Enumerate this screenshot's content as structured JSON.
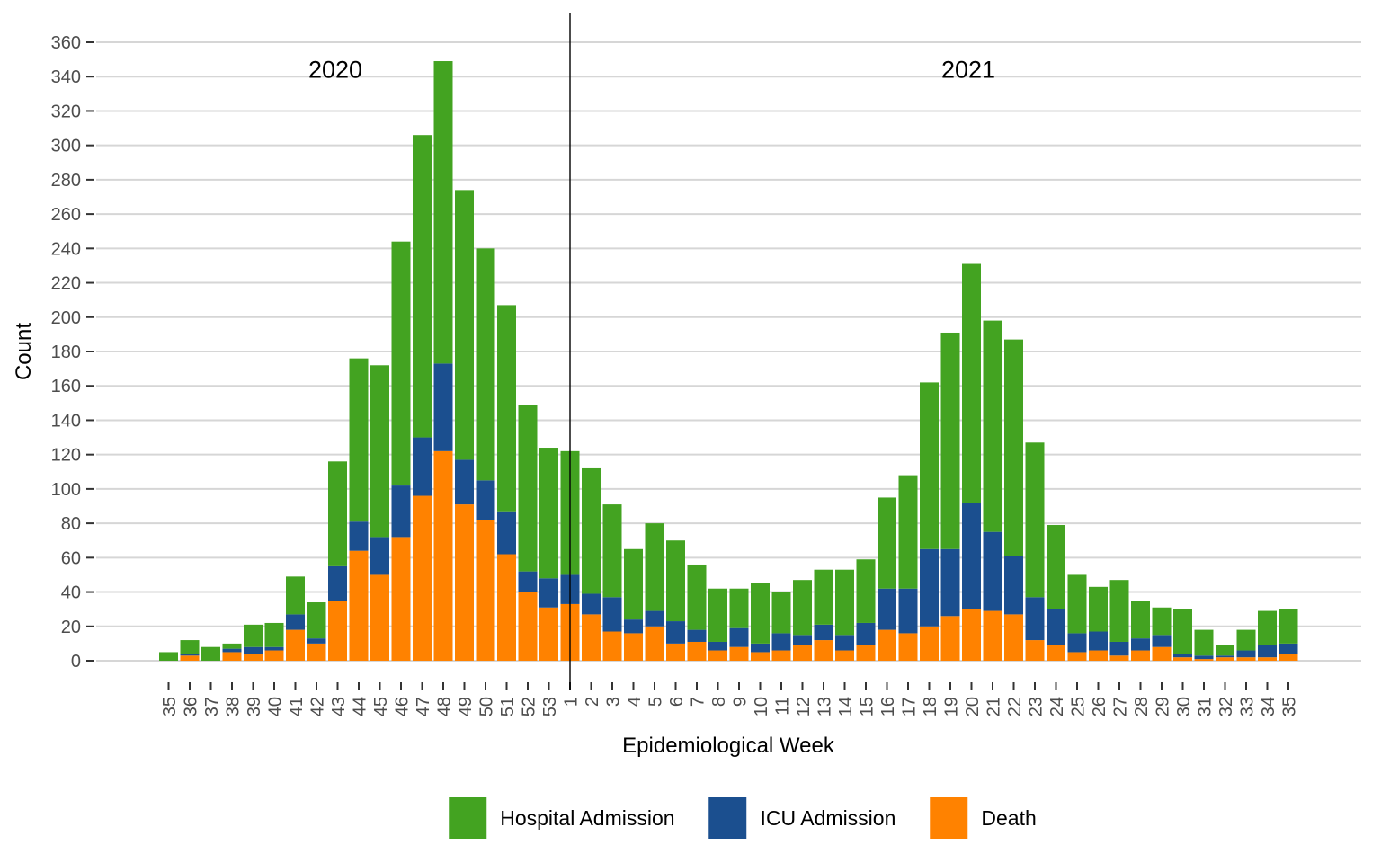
{
  "figure": {
    "year_left_label": "2020",
    "year_right_label": "2021"
  },
  "chart_data": {
    "type": "bar",
    "stacked": true,
    "title": "",
    "xlabel": "Epidemiological Week",
    "ylabel": "Count",
    "ylim": [
      0,
      360
    ],
    "ytick_step": 20,
    "grid": "horizontal",
    "legend_position": "bottom",
    "separator_at_category_index": 19,
    "categories": [
      "35",
      "36",
      "37",
      "38",
      "39",
      "40",
      "41",
      "42",
      "43",
      "44",
      "45",
      "46",
      "47",
      "48",
      "49",
      "50",
      "51",
      "52",
      "53",
      "1",
      "2",
      "3",
      "4",
      "5",
      "6",
      "7",
      "8",
      "9",
      "10",
      "11",
      "12",
      "13",
      "14",
      "15",
      "16",
      "17",
      "18",
      "19",
      "20",
      "21",
      "22",
      "23",
      "24",
      "25",
      "26",
      "27",
      "28",
      "29",
      "30",
      "31",
      "32",
      "33",
      "34",
      "35"
    ],
    "series": [
      {
        "name": "Death",
        "color": "#FF8200",
        "values": [
          0,
          3,
          0,
          5,
          4,
          6,
          18,
          10,
          35,
          64,
          50,
          72,
          96,
          122,
          91,
          82,
          62,
          40,
          31,
          33,
          27,
          17,
          16,
          20,
          10,
          11,
          6,
          8,
          5,
          6,
          9,
          12,
          6,
          9,
          18,
          16,
          20,
          26,
          30,
          29,
          27,
          12,
          9,
          5,
          6,
          3,
          6,
          8,
          2,
          1,
          2,
          2,
          2,
          4
        ]
      },
      {
        "name": "ICU Admission",
        "color": "#1B4F8F",
        "values": [
          0,
          1,
          0,
          2,
          4,
          2,
          9,
          3,
          20,
          17,
          22,
          30,
          34,
          51,
          26,
          23,
          25,
          12,
          17,
          17,
          12,
          20,
          8,
          9,
          13,
          7,
          5,
          11,
          5,
          10,
          6,
          9,
          9,
          13,
          24,
          26,
          45,
          39,
          62,
          46,
          34,
          25,
          21,
          11,
          11,
          8,
          7,
          7,
          2,
          2,
          1,
          4,
          7,
          6
        ]
      },
      {
        "name": "Hospital Admission",
        "color": "#43A321",
        "values": [
          5,
          8,
          8,
          3,
          13,
          14,
          22,
          21,
          61,
          95,
          100,
          142,
          176,
          176,
          157,
          135,
          120,
          97,
          76,
          72,
          73,
          54,
          41,
          51,
          47,
          38,
          31,
          23,
          35,
          24,
          32,
          32,
          38,
          37,
          53,
          66,
          97,
          126,
          139,
          123,
          126,
          90,
          49,
          34,
          26,
          36,
          22,
          16,
          26,
          15,
          6,
          12,
          20,
          20
        ]
      }
    ],
    "legend_order": [
      2,
      1,
      0
    ],
    "axis_text_color": "#4D4D4D",
    "gridline_color": "#D6D6D6",
    "tick_color": "#333333",
    "separator_color": "#000000"
  }
}
